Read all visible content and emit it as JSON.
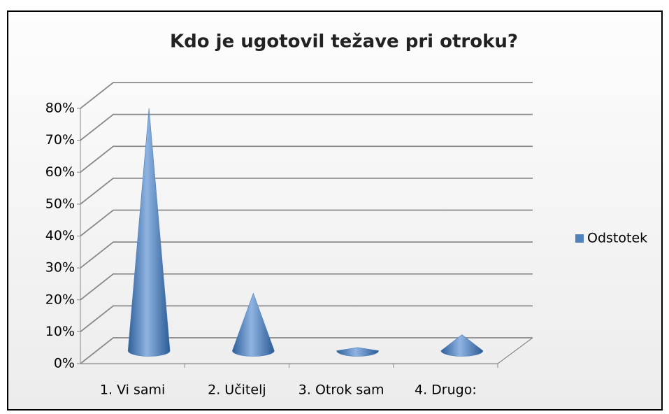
{
  "chart_data": {
    "type": "cone3d",
    "title": "Kdo je ugotovil težave pri otroku?",
    "categories": [
      "1. Vi sami",
      "2. Učitelj",
      "3. Otrok sam",
      "4. Drugo:"
    ],
    "series": [
      {
        "name": "Odstotek",
        "color": "#4f81bd",
        "values": [
          76,
          18,
          1,
          5
        ]
      }
    ],
    "ylim": [
      0,
      80
    ],
    "yticks": [
      {
        "value": 0,
        "label": "0%"
      },
      {
        "value": 10,
        "label": "10%"
      },
      {
        "value": 20,
        "label": "20%"
      },
      {
        "value": 30,
        "label": "30%"
      },
      {
        "value": 40,
        "label": "40%"
      },
      {
        "value": 50,
        "label": "50%"
      },
      {
        "value": 60,
        "label": "60%"
      },
      {
        "value": 70,
        "label": "70%"
      },
      {
        "value": 80,
        "label": "80%"
      }
    ],
    "grid": true,
    "legend": "right"
  }
}
